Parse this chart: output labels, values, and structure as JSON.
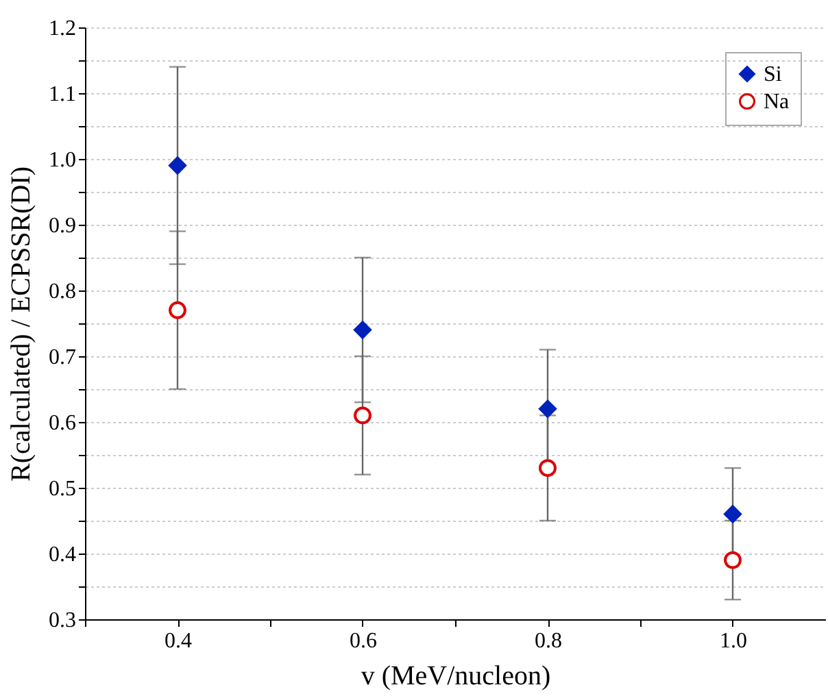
{
  "chart_data": {
    "type": "scatter",
    "xlabel": "v (MeV/nucleon)",
    "ylabel": "R(calculated) / ECPSSR(DI)",
    "x": [
      0.4,
      0.6,
      0.8,
      1.0
    ],
    "series": [
      {
        "name": "Si",
        "color": "#0022bb",
        "marker": "diamond",
        "values": [
          0.99,
          0.74,
          0.62,
          0.46
        ],
        "errors": [
          0.15,
          0.11,
          0.09,
          0.07
        ]
      },
      {
        "name": "Na",
        "color": "#dd0000",
        "marker": "circle",
        "values": [
          0.77,
          0.61,
          0.53,
          0.39
        ],
        "errors": [
          0.12,
          0.09,
          0.08,
          0.06
        ]
      }
    ],
    "xlim": [
      0.3,
      1.1
    ],
    "xticks": [
      {
        "value": 0.3,
        "label": null
      },
      {
        "value": 0.4,
        "label": "0.4"
      },
      {
        "value": 0.5,
        "label": null
      },
      {
        "value": 0.6,
        "label": "0.6"
      },
      {
        "value": 0.7,
        "label": null
      },
      {
        "value": 0.8,
        "label": "0.8"
      },
      {
        "value": 0.9,
        "label": null
      },
      {
        "value": 1.0,
        "label": "1.0"
      }
    ],
    "ylim": [
      0.3,
      1.2
    ],
    "yticks": [
      {
        "value": 0.3,
        "label": "0.3"
      },
      {
        "value": 0.35,
        "label": null
      },
      {
        "value": 0.4,
        "label": "0.4"
      },
      {
        "value": 0.45,
        "label": null
      },
      {
        "value": 0.5,
        "label": "0.5"
      },
      {
        "value": 0.55,
        "label": null
      },
      {
        "value": 0.6,
        "label": "0.6"
      },
      {
        "value": 0.65,
        "label": null
      },
      {
        "value": 0.7,
        "label": "0.7"
      },
      {
        "value": 0.75,
        "label": null
      },
      {
        "value": 0.8,
        "label": "0.8"
      },
      {
        "value": 0.85,
        "label": null
      },
      {
        "value": 0.9,
        "label": "0.9"
      },
      {
        "value": 0.95,
        "label": null
      },
      {
        "value": 1.0,
        "label": "1.0"
      },
      {
        "value": 1.05,
        "label": null
      },
      {
        "value": 1.1,
        "label": "1.1"
      },
      {
        "value": 1.15,
        "label": null
      },
      {
        "value": 1.2,
        "label": "1.2"
      }
    ],
    "grid": "y",
    "legend": "top right"
  }
}
